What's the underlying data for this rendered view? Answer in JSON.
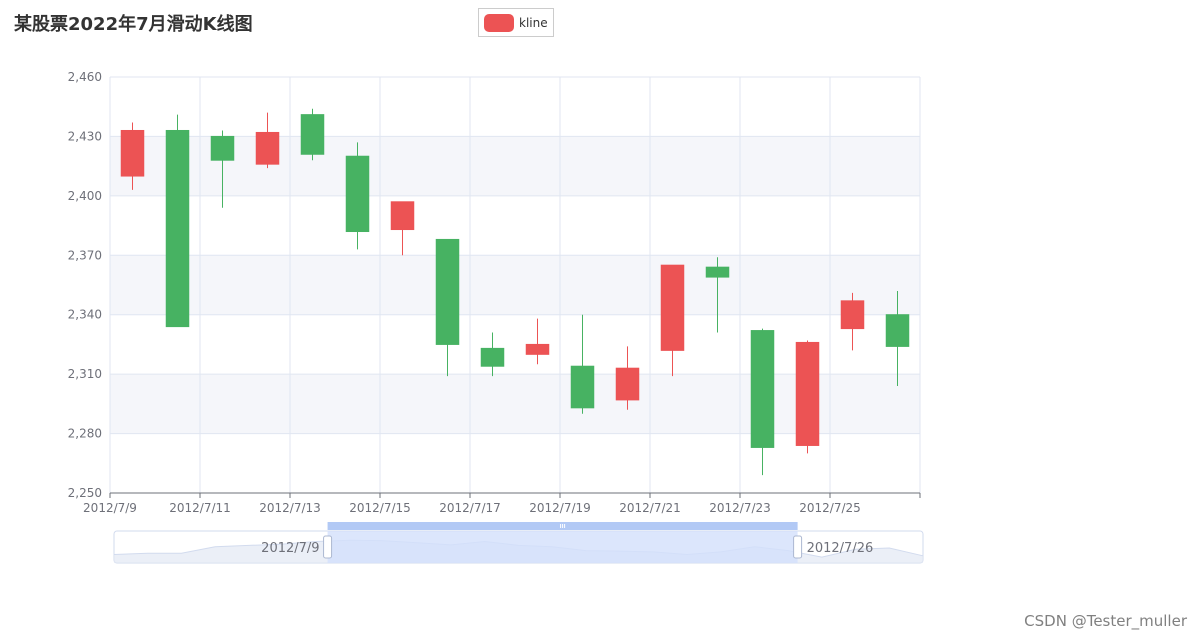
{
  "title": "某股票2022年7月滑动K线图",
  "legend": {
    "label": "kline",
    "color": "#ec5354"
  },
  "watermark": "CSDN @Tester_muller",
  "colors": {
    "up": "#ec5354",
    "down": "#47b262",
    "grid": "#e0e6f1",
    "band": "#f5f6fa",
    "axis": "#6e7079",
    "zoom_fill": "#d3e0fb",
    "zoom_top": "#b2c9f5",
    "zoom_border": "#d2dbee"
  },
  "chart_data": {
    "type": "candlestick",
    "title": "某股票2022年7月滑动K线图",
    "legend": [
      "kline"
    ],
    "legend_position": "top-center",
    "y_axis": {
      "min": 2250,
      "max": 2460,
      "ticks": [
        "2,460",
        "2,430",
        "2,400",
        "2,370",
        "2,340",
        "2,310",
        "2,280",
        "2,250"
      ],
      "tick_values": [
        2460,
        2430,
        2400,
        2370,
        2340,
        2310,
        2280,
        2250
      ]
    },
    "x_axis": {
      "categories": [
        "2012/7/9",
        "2012/7/10",
        "2012/7/11",
        "2012/7/12",
        "2012/7/13",
        "2012/7/14",
        "2012/7/15",
        "2012/7/16",
        "2012/7/17",
        "2012/7/18",
        "2012/7/19",
        "2012/7/20",
        "2012/7/21",
        "2012/7/22",
        "2012/7/23",
        "2012/7/24",
        "2012/7/25",
        "2012/7/26"
      ],
      "labels": [
        "2012/7/9",
        "2012/7/11",
        "2012/7/13",
        "2012/7/15",
        "2012/7/17",
        "2012/7/19",
        "2012/7/21",
        "2012/7/23",
        "2012/7/25"
      ]
    },
    "split_area": true,
    "grid": true,
    "series": [
      {
        "name": "kline",
        "data": [
          {
            "open": 2410,
            "close": 2433,
            "low": 2403,
            "high": 2437
          },
          {
            "open": 2433,
            "close": 2334,
            "low": 2334,
            "high": 2441
          },
          {
            "open": 2430,
            "close": 2418,
            "low": 2394,
            "high": 2433
          },
          {
            "open": 2416,
            "close": 2432,
            "low": 2414,
            "high": 2442
          },
          {
            "open": 2441,
            "close": 2421,
            "low": 2418,
            "high": 2444
          },
          {
            "open": 2420,
            "close": 2382,
            "low": 2373,
            "high": 2427
          },
          {
            "open": 2383,
            "close": 2397,
            "low": 2370,
            "high": 2397
          },
          {
            "open": 2378,
            "close": 2325,
            "low": 2309,
            "high": 2378
          },
          {
            "open": 2323,
            "close": 2314,
            "low": 2309,
            "high": 2331
          },
          {
            "open": 2320,
            "close": 2325,
            "low": 2315,
            "high": 2338
          },
          {
            "open": 2314,
            "close": 2293,
            "low": 2290,
            "high": 2340
          },
          {
            "open": 2297,
            "close": 2313,
            "low": 2292,
            "high": 2324
          },
          {
            "open": 2322,
            "close": 2365,
            "low": 2309,
            "high": 2365
          },
          {
            "open": 2364,
            "close": 2359,
            "low": 2331,
            "high": 2369
          },
          {
            "open": 2332,
            "close": 2273,
            "low": 2259,
            "high": 2333
          },
          {
            "open": 2274,
            "close": 2326,
            "low": 2270,
            "high": 2327
          },
          {
            "open": 2333,
            "close": 2347,
            "low": 2322,
            "high": 2351
          },
          {
            "open": 2340,
            "close": 2324,
            "low": 2304,
            "high": 2352
          }
        ]
      }
    ],
    "data_zoom": {
      "start_label": "2012/7/9",
      "end_label": "2012/7/26",
      "start_fraction": 0.264,
      "end_fraction": 0.845,
      "preview": [
        0.25,
        0.3,
        0.3,
        0.55,
        0.6,
        0.65,
        0.75,
        0.8,
        0.78,
        0.7,
        0.62,
        0.75,
        0.6,
        0.55,
        0.4,
        0.38,
        0.35,
        0.25,
        0.35,
        0.55,
        0.4,
        0.15,
        0.45,
        0.5,
        0.2
      ]
    }
  }
}
